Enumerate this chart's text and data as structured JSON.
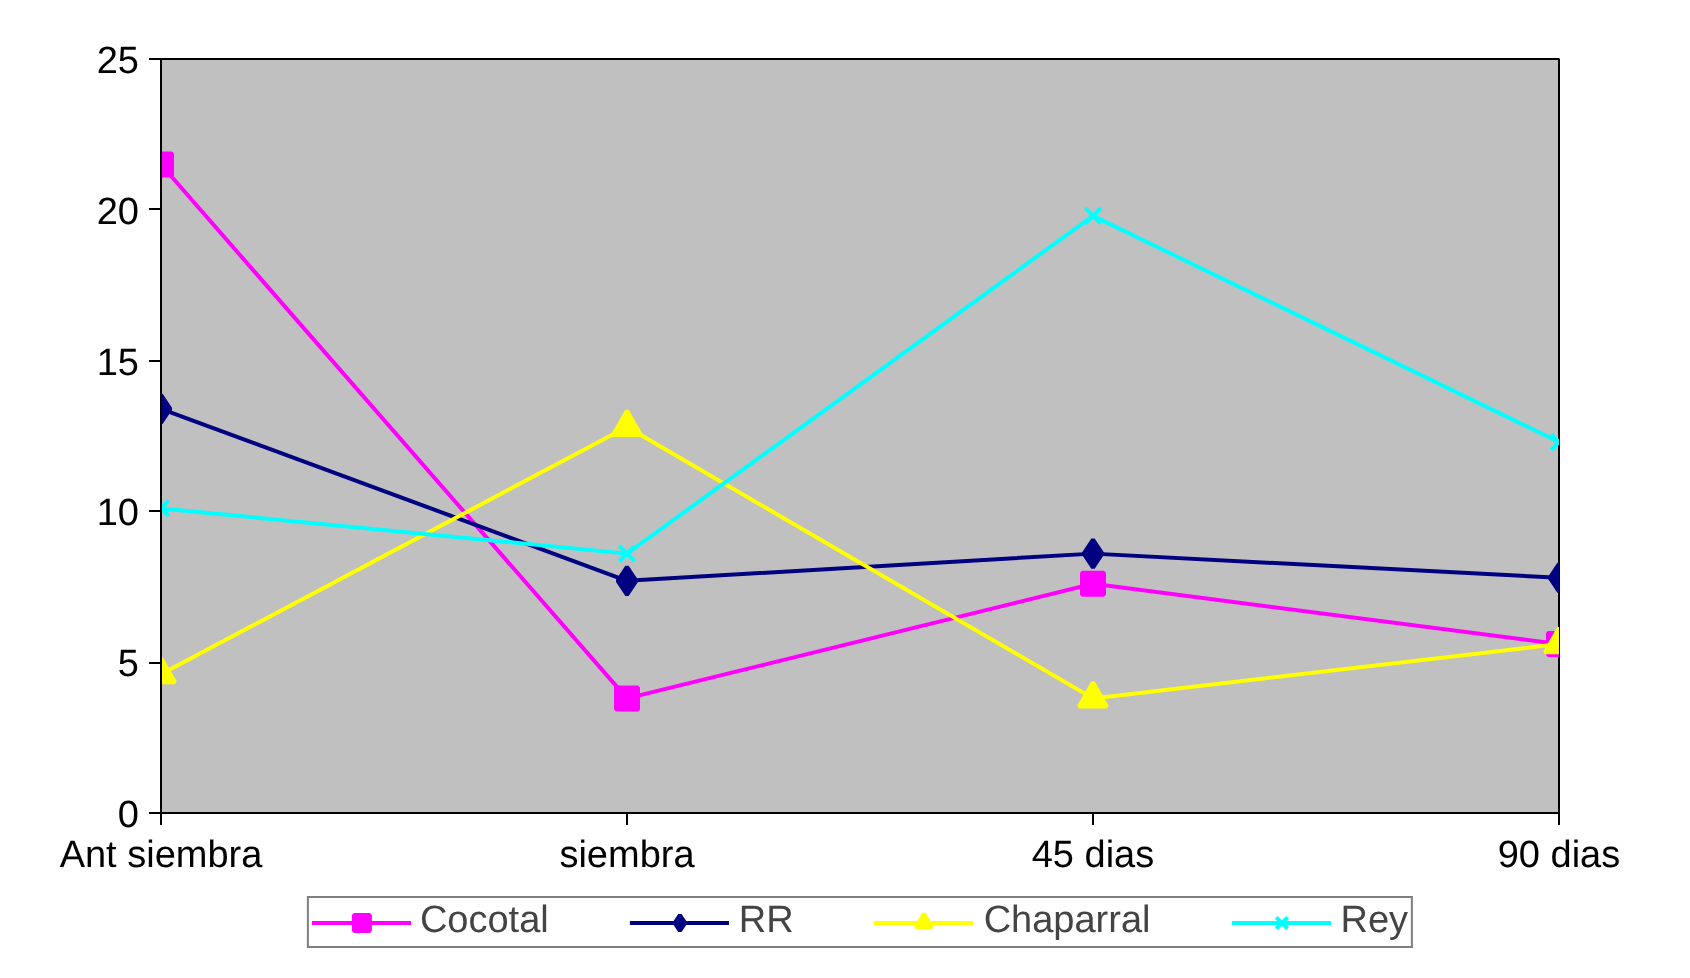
{
  "chart_data": {
    "type": "line",
    "categories": [
      "Ant siembra",
      "siembra",
      "45 dias",
      "90 dias"
    ],
    "series": [
      {
        "name": "Cocotal",
        "color": "#ff00ff",
        "marker": "square",
        "values": [
          21.5,
          3.8,
          7.6,
          5.6
        ]
      },
      {
        "name": "RR",
        "color": "#000080",
        "marker": "diamond",
        "values": [
          13.4,
          7.7,
          8.6,
          7.8
        ]
      },
      {
        "name": "Chaparral",
        "color": "#ffff00",
        "marker": "triangle",
        "values": [
          4.6,
          12.8,
          3.8,
          5.6
        ]
      },
      {
        "name": "Rey",
        "color": "#00ffff",
        "marker": "cross",
        "values": [
          10.1,
          8.6,
          19.8,
          12.3
        ]
      }
    ],
    "ylim": [
      0,
      25
    ],
    "yticks": [
      0,
      5,
      10,
      15,
      20,
      25
    ],
    "grid": false,
    "legend": "bottom",
    "line_style": "solid"
  }
}
